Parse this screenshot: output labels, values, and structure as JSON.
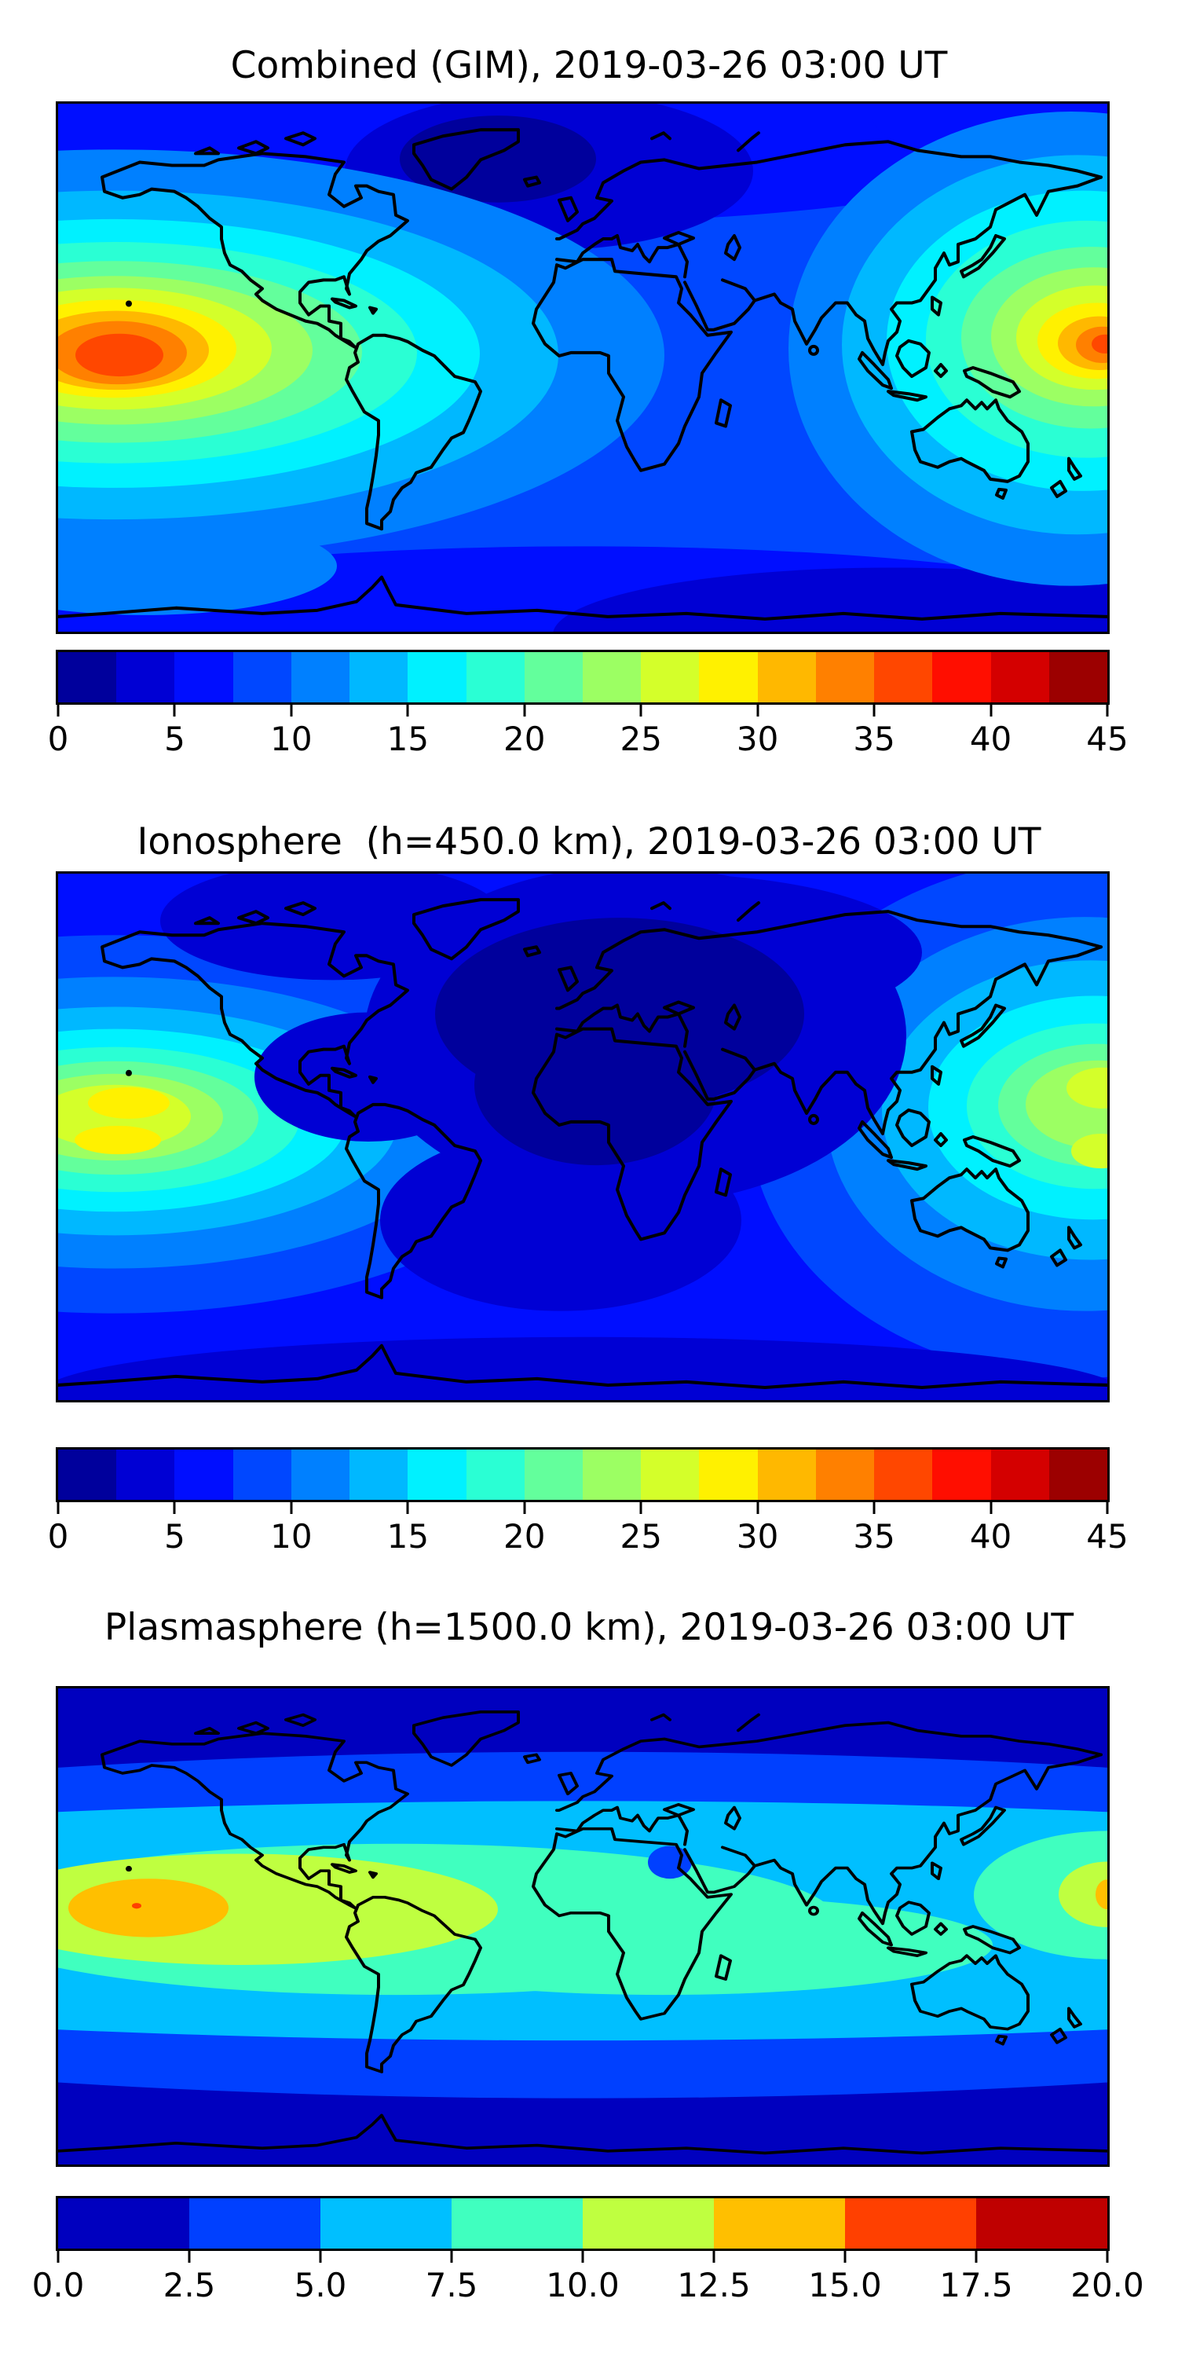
{
  "figure": {
    "background": "#ffffff",
    "text_color": "#000000",
    "frame_color": "#000000",
    "coastline_color": "#000000"
  },
  "palette": {
    "jet18": [
      "#00009C",
      "#0000D4",
      "#000EFF",
      "#0047FF",
      "#0080FF",
      "#00B8FF",
      "#00F1FF",
      "#2AFFD4",
      "#63FF9C",
      "#9CFF63",
      "#D4FF2A",
      "#FFF100",
      "#FFB800",
      "#FF8000",
      "#FF4700",
      "#FF0E00",
      "#D40000",
      "#9C0000"
    ],
    "jet8": [
      "#0000BF",
      "#0040FF",
      "#00BFFF",
      "#40FFBF",
      "#BFFF40",
      "#FFBF00",
      "#FF4000",
      "#BF0000"
    ]
  },
  "panels": [
    {
      "title": "Combined (GIM), 2019-03-26 03:00 UT",
      "colorbar": {
        "min": 0,
        "max": 45,
        "level_step": 2.5,
        "n_segments": 18,
        "ticks": [
          "0",
          "5",
          "10",
          "15",
          "20",
          "25",
          "30",
          "35",
          "40",
          "45"
        ]
      }
    },
    {
      "title": "Ionosphere  (h=450.0 km), 2019-03-26 03:00 UT",
      "colorbar": {
        "min": 0,
        "max": 45,
        "level_step": 2.5,
        "n_segments": 18,
        "ticks": [
          "0",
          "5",
          "10",
          "15",
          "20",
          "25",
          "30",
          "35",
          "40",
          "45"
        ]
      }
    },
    {
      "title": "Plasmasphere (h=1500.0 km), 2019-03-26 03:00 UT",
      "colorbar": {
        "min": 0.0,
        "max": 20.0,
        "level_step": 2.5,
        "n_segments": 8,
        "ticks": [
          "0.0",
          "2.5",
          "5.0",
          "7.5",
          "10.0",
          "12.5",
          "15.0",
          "17.5",
          "20.0"
        ]
      }
    }
  ],
  "chart_data": [
    {
      "type": "heatmap",
      "subtype": "filled_contour_world_map",
      "title": "Combined (GIM), 2019-03-26 03:00 UT",
      "projection": "equirectangular",
      "lon_range": [
        -180,
        180
      ],
      "lat_range": [
        -90,
        90
      ],
      "colormap": "jet",
      "levels": [
        0,
        2.5,
        5,
        7.5,
        10,
        12.5,
        15,
        17.5,
        20,
        22.5,
        25,
        27.5,
        30,
        32.5,
        35,
        37.5,
        40,
        42.5,
        45
      ],
      "colorbar_ticks": [
        0,
        5,
        10,
        15,
        20,
        25,
        30,
        35,
        40,
        45
      ],
      "coastlines": true,
      "grid": false,
      "legend_position": "bottom-colorbar",
      "features": {
        "maxima": [
          {
            "region": "central Pacific (equatorial anomaly, ~160W, ~5N)",
            "peak_value": "37.5-40",
            "rings_down_to": "10"
          },
          {
            "region": "west Pacific / east of Philippines (~175E, ~5N)",
            "peak_value": "37.5-40",
            "rings_down_to": "10"
          }
        ],
        "minima": [
          {
            "region": "Greenland / Scandinavia / North Atlantic",
            "value": "0-5"
          },
          {
            "region": "southern high latitudes (Indian-ocean sector)",
            "value": "2.5-5"
          }
        ],
        "background_value": "7.5-10"
      }
    },
    {
      "type": "heatmap",
      "subtype": "filled_contour_world_map",
      "title": "Ionosphere  (h=450.0 km), 2019-03-26 03:00 UT",
      "projection": "equirectangular",
      "lon_range": [
        -180,
        180
      ],
      "lat_range": [
        -90,
        90
      ],
      "colormap": "jet",
      "levels": [
        0,
        2.5,
        5,
        7.5,
        10,
        12.5,
        15,
        17.5,
        20,
        22.5,
        25,
        27.5,
        30,
        32.5,
        35,
        37.5,
        40,
        42.5,
        45
      ],
      "colorbar_ticks": [
        0,
        5,
        10,
        15,
        20,
        25,
        30,
        35,
        40,
        45
      ],
      "coastlines": true,
      "grid": false,
      "legend_position": "bottom-colorbar",
      "features": {
        "maxima": [
          {
            "region": "central Pacific (~160W), twin crests ~12N and ~6S",
            "peak_value": "22.5-25"
          },
          {
            "region": "west Pacific (~175E), twin crests ~18N and ~9S",
            "peak_value": "22.5-25"
          }
        ],
        "minima": [
          {
            "region": "Europe / Mediterranean / North Africa (night side)",
            "value": "0-2.5"
          },
          {
            "region": "Atlantic and African surroundings",
            "value": "2.5-5"
          }
        ],
        "background_value": "5-7.5"
      }
    },
    {
      "type": "heatmap",
      "subtype": "filled_contour_world_map",
      "title": "Plasmasphere (h=1500.0 km), 2019-03-26 03:00 UT",
      "projection": "equirectangular",
      "lon_range": [
        -180,
        180
      ],
      "lat_range": [
        -90,
        90
      ],
      "colormap": "jet",
      "levels": [
        0,
        2.5,
        5,
        7.5,
        10,
        12.5,
        15,
        17.5,
        20
      ],
      "colorbar_ticks": [
        0.0,
        2.5,
        5.0,
        7.5,
        10.0,
        12.5,
        15.0,
        17.5,
        20.0
      ],
      "coastlines": true,
      "grid": false,
      "legend_position": "bottom-colorbar",
      "features": {
        "band_structure": [
          {
            "region": "polar caps north & south",
            "value": "0-2.5"
          },
          {
            "region": "mid-latitude bands",
            "value": "2.5-5"
          },
          {
            "region": "broad low-latitude band",
            "value": "5-7.5"
          },
          {
            "region": "equatorial band (Americas/Atlantic wide)",
            "value": "7.5-10"
          }
        ],
        "maxima": [
          {
            "region": "central Pacific (~155W, ~5N)",
            "peak_value": "12.5-15 with tiny 15-17.5 core"
          },
          {
            "region": "dateline right edge (~180E, ~11N)",
            "peak_value": "12.5-15 with small 15-17.5 sliver"
          }
        ],
        "local_minimum": {
          "region": "NE Africa (~28E, ~22N) small spot",
          "value": "2.5-5"
        }
      }
    }
  ]
}
